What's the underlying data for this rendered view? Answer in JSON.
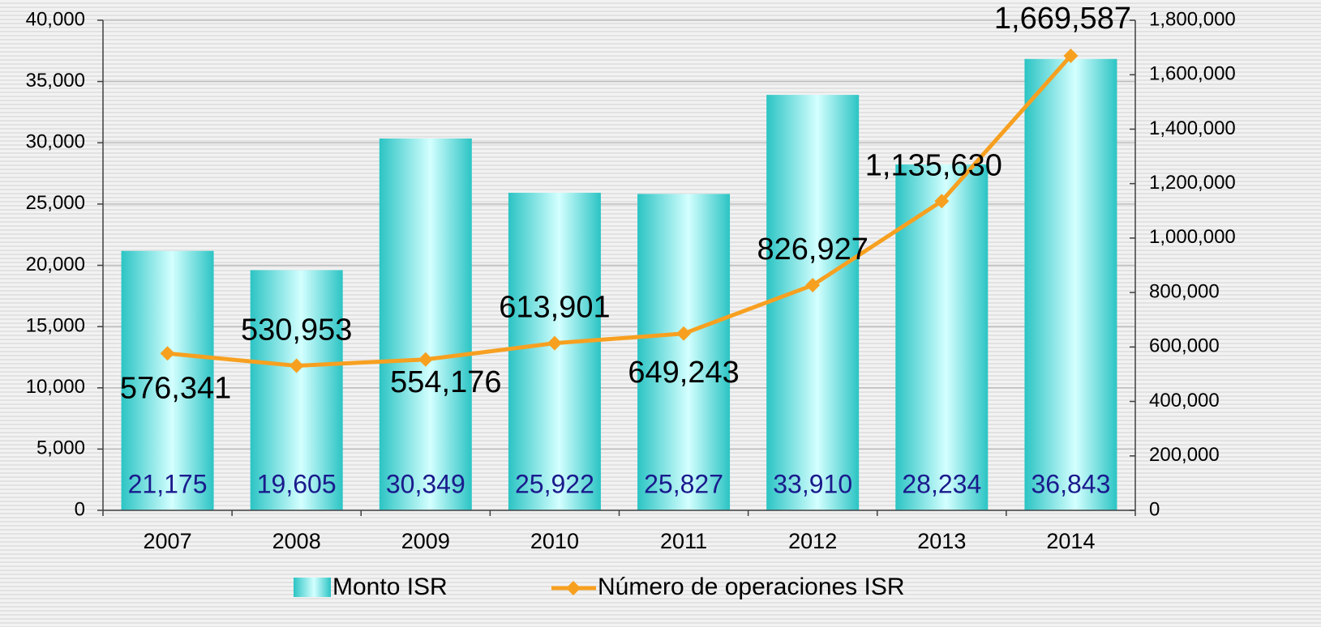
{
  "chart_data": {
    "type": "bar",
    "categories": [
      "2007",
      "2008",
      "2009",
      "2010",
      "2011",
      "2012",
      "2013",
      "2014"
    ],
    "series": [
      {
        "name": "Monto ISR",
        "type": "bar",
        "color": "#2cc4c4",
        "values": [
          21175,
          19605,
          30349,
          25922,
          25827,
          33910,
          28234,
          36843
        ],
        "value_labels": [
          "21,175",
          "19,605",
          "30,349",
          "25,922",
          "25,827",
          "33,910",
          "28,234",
          "36,843"
        ]
      },
      {
        "name": "Número de operaciones ISR",
        "type": "line",
        "axis": "y2",
        "color": "#f7a020",
        "values": [
          576341,
          530953,
          554176,
          613901,
          649243,
          826927,
          1135630,
          1669587
        ],
        "value_labels": [
          "576,341",
          "530,953",
          "554,176",
          "613,901",
          "649,243",
          "826,927",
          "1,135,630",
          "1,669,587"
        ]
      }
    ],
    "ylim": [
      0,
      40000
    ],
    "yticks": [
      0,
      {
        "value": 5000,
        "label": "5,000"
      },
      {
        "value": 10000,
        "label": "10,000"
      },
      {
        "value": 15000,
        "label": "15,000"
      },
      {
        "value": 20000,
        "label": "20,000"
      },
      {
        "value": 25000,
        "label": "25,000"
      },
      {
        "value": 30000,
        "label": "30,000"
      },
      {
        "value": 35000,
        "label": "35,000"
      },
      {
        "value": 40000,
        "label": "40,000"
      }
    ],
    "y2lim": [
      0,
      1800000
    ],
    "y2ticks": [
      0,
      {
        "value": 200000,
        "label": "200,000"
      },
      {
        "value": 400000,
        "label": "400,000"
      },
      {
        "value": 600000,
        "label": "600,000"
      },
      {
        "value": 800000,
        "label": "800,000"
      },
      {
        "value": 1000000,
        "label": "1,000,000"
      },
      {
        "value": 1200000,
        "label": "1,200,000"
      },
      {
        "value": 1400000,
        "label": "1,400,000"
      },
      {
        "value": 1600000,
        "label": "1,600,000"
      },
      {
        "value": 1800000,
        "label": "1,800,000"
      }
    ],
    "grid": true,
    "legend": "bottom"
  }
}
